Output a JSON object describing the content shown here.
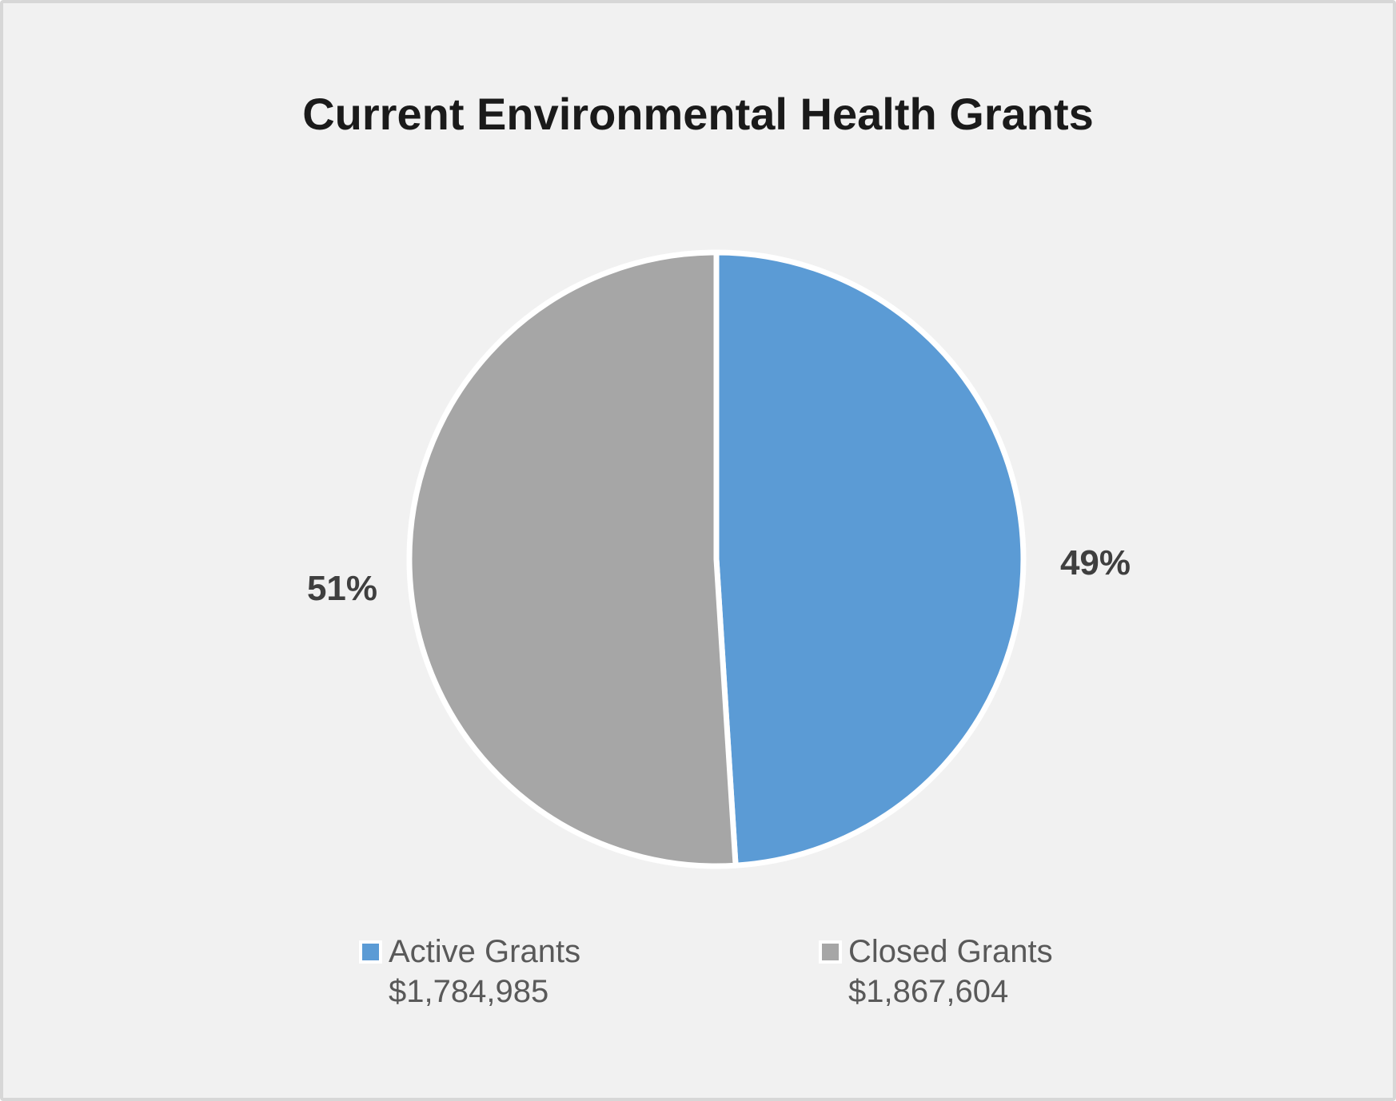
{
  "frame": {
    "background_color": "#f1f1f1",
    "border_color": "#d7d7d7"
  },
  "chart_data": {
    "type": "pie",
    "title": "Current Environmental Health Grants",
    "direction": "clockwise",
    "start_angle_deg": 0,
    "legend_position": "bottom",
    "slice_border_color": "#FFFFFF",
    "slices": [
      {
        "label": "Active Grants",
        "value": 1784985,
        "value_label": "$1,784,985",
        "pct": 49,
        "pct_label": "49%",
        "color": "#5B9BD5"
      },
      {
        "label": "Closed Grants",
        "value": 1867604,
        "value_label": "$1,867,604",
        "pct": 51,
        "pct_label": "51%",
        "color": "#A6A6A6"
      }
    ]
  },
  "styles": {
    "title_color": "#1a1a1a",
    "percent_label_color": "#3f3f3f",
    "legend_text_color": "#595959"
  }
}
